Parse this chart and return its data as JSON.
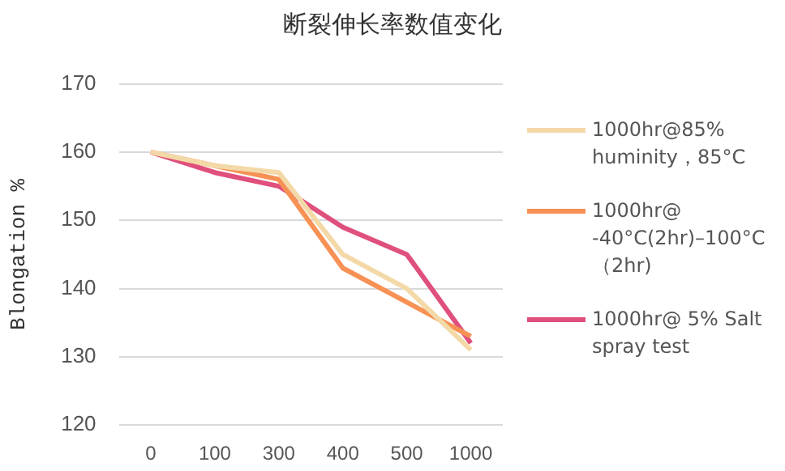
{
  "chart_data": {
    "type": "line",
    "title": "断裂伸长率数值变化",
    "ylabel": "Blongation %",
    "categories": [
      "0",
      "100",
      "300",
      "400",
      "500",
      "1000"
    ],
    "series": [
      {
        "name": "1000hr@85% huminity，85°C",
        "color": "#f4d9a8",
        "values": [
          160,
          158,
          157,
          145,
          140,
          131
        ]
      },
      {
        "name": "1000hr@ -40°C(2hr)–100°C （2hr)",
        "color": "#f79154",
        "values": [
          160,
          158,
          156,
          143,
          138,
          133
        ]
      },
      {
        "name": "1000hr@ 5% Salt spray test",
        "color": "#e0507d",
        "values": [
          160,
          157,
          155,
          149,
          145,
          132
        ]
      }
    ],
    "ylim": [
      120,
      170
    ],
    "yticks": [
      120,
      130,
      140,
      150,
      160,
      170
    ],
    "grid": "y",
    "legend": "right",
    "marker": "none",
    "line_style": "solid"
  }
}
